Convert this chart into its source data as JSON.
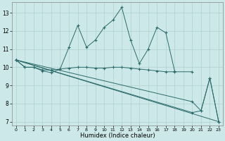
{
  "xlabel": "Humidex (Indice chaleur)",
  "bg_color": "#cce8e8",
  "line_color": "#2d6b6b",
  "grid_color": "#b0d0d0",
  "xlim": [
    -0.5,
    23.5
  ],
  "ylim": [
    6.8,
    13.6
  ],
  "xticks": [
    0,
    1,
    2,
    3,
    4,
    5,
    6,
    7,
    8,
    9,
    10,
    11,
    12,
    13,
    14,
    15,
    16,
    17,
    18,
    19,
    20,
    21,
    22,
    23
  ],
  "yticks": [
    7,
    8,
    9,
    10,
    11,
    12,
    13
  ],
  "line1_x": [
    0,
    1,
    2,
    3,
    4,
    5,
    6,
    7,
    8,
    9,
    10,
    11,
    12,
    13,
    14,
    15,
    16,
    17,
    18
  ],
  "line1_y": [
    10.4,
    10.0,
    10.0,
    9.8,
    9.7,
    9.9,
    11.1,
    12.3,
    11.1,
    11.5,
    12.2,
    12.6,
    13.3,
    11.5,
    10.2,
    11.0,
    12.2,
    11.9,
    9.8
  ],
  "line2_x": [
    0,
    1,
    2,
    3,
    4,
    5,
    6,
    7,
    8,
    9,
    10,
    11,
    12,
    13,
    14,
    15,
    16,
    17,
    18,
    20
  ],
  "line2_y": [
    10.4,
    10.0,
    10.0,
    9.85,
    9.85,
    9.9,
    9.95,
    10.0,
    10.0,
    9.95,
    9.95,
    10.0,
    10.0,
    9.95,
    9.9,
    9.85,
    9.8,
    9.75,
    9.75,
    9.75
  ],
  "line3_x": [
    0,
    20,
    21,
    22,
    23
  ],
  "line3_y": [
    10.4,
    8.1,
    7.6,
    9.4,
    7.0
  ],
  "line4_x": [
    0,
    20,
    21,
    22,
    23
  ],
  "line4_y": [
    10.4,
    7.5,
    7.6,
    9.4,
    7.0
  ],
  "line5_x": [
    0,
    23
  ],
  "line5_y": [
    10.4,
    7.0
  ]
}
